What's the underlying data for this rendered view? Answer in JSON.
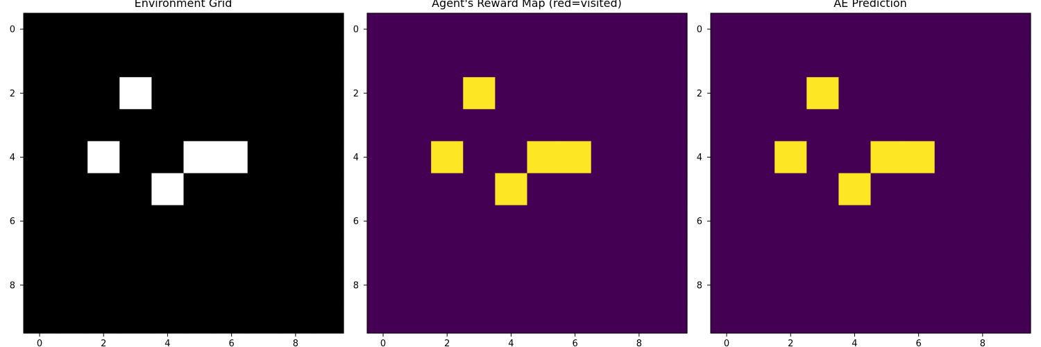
{
  "chart_data": [
    {
      "type": "heatmap",
      "title": "Environment Grid",
      "colormap": "gray",
      "colors": {
        "low": "#000000",
        "high": "#ffffff"
      },
      "xticks": [
        0,
        2,
        4,
        6,
        8
      ],
      "yticks": [
        0,
        2,
        4,
        6,
        8
      ],
      "xlim": [
        -0.5,
        9.5
      ],
      "ylim": [
        9.5,
        -0.5
      ],
      "grid": false,
      "values": [
        [
          0,
          0,
          0,
          0,
          0,
          0,
          0,
          0,
          0,
          0
        ],
        [
          0,
          0,
          0,
          0,
          0,
          0,
          0,
          0,
          0,
          0
        ],
        [
          0,
          0,
          0,
          1,
          0,
          0,
          0,
          0,
          0,
          0
        ],
        [
          0,
          0,
          0,
          0,
          0,
          0,
          0,
          0,
          0,
          0
        ],
        [
          0,
          0,
          1,
          0,
          0,
          1,
          1,
          0,
          0,
          0
        ],
        [
          0,
          0,
          0,
          0,
          1,
          0,
          0,
          0,
          0,
          0
        ],
        [
          0,
          0,
          0,
          0,
          0,
          0,
          0,
          0,
          0,
          0
        ],
        [
          0,
          0,
          0,
          0,
          0,
          0,
          0,
          0,
          0,
          0
        ],
        [
          0,
          0,
          0,
          0,
          0,
          0,
          0,
          0,
          0,
          0
        ],
        [
          0,
          0,
          0,
          0,
          0,
          0,
          0,
          0,
          0,
          0
        ]
      ]
    },
    {
      "type": "heatmap",
      "title": "Agent's Reward Map (red=visited)",
      "colormap": "viridis",
      "colors": {
        "low": "#440154",
        "high": "#fde725"
      },
      "xticks": [
        0,
        2,
        4,
        6,
        8
      ],
      "yticks": [
        0,
        2,
        4,
        6,
        8
      ],
      "xlim": [
        -0.5,
        9.5
      ],
      "ylim": [
        9.5,
        -0.5
      ],
      "grid": false,
      "values": [
        [
          0,
          0,
          0,
          0,
          0,
          0,
          0,
          0,
          0,
          0
        ],
        [
          0,
          0,
          0,
          0,
          0,
          0,
          0,
          0,
          0,
          0
        ],
        [
          0,
          0,
          0,
          1,
          0,
          0,
          0,
          0,
          0,
          0
        ],
        [
          0,
          0,
          0,
          0,
          0,
          0,
          0,
          0,
          0,
          0
        ],
        [
          0,
          0,
          1,
          0,
          0,
          1,
          1,
          0,
          0,
          0
        ],
        [
          0,
          0,
          0,
          0,
          1,
          0,
          0,
          0,
          0,
          0
        ],
        [
          0,
          0,
          0,
          0,
          0,
          0,
          0,
          0,
          0,
          0
        ],
        [
          0,
          0,
          0,
          0,
          0,
          0,
          0,
          0,
          0,
          0
        ],
        [
          0,
          0,
          0,
          0,
          0,
          0,
          0,
          0,
          0,
          0
        ],
        [
          0,
          0,
          0,
          0,
          0,
          0,
          0,
          0,
          0,
          0
        ]
      ]
    },
    {
      "type": "heatmap",
      "title": "AE Prediction",
      "colormap": "viridis",
      "colors": {
        "low": "#440154",
        "high": "#fde725"
      },
      "xticks": [
        0,
        2,
        4,
        6,
        8
      ],
      "yticks": [
        0,
        2,
        4,
        6,
        8
      ],
      "xlim": [
        -0.5,
        9.5
      ],
      "ylim": [
        9.5,
        -0.5
      ],
      "grid": false,
      "values": [
        [
          0,
          0,
          0,
          0,
          0,
          0,
          0,
          0,
          0,
          0
        ],
        [
          0,
          0,
          0,
          0,
          0,
          0,
          0,
          0,
          0,
          0
        ],
        [
          0,
          0,
          0,
          1,
          0,
          0,
          0,
          0,
          0,
          0
        ],
        [
          0,
          0,
          0,
          0,
          0,
          0,
          0,
          0,
          0,
          0
        ],
        [
          0,
          0,
          1,
          0,
          0,
          1,
          1,
          0,
          0,
          0
        ],
        [
          0,
          0,
          0,
          0,
          1,
          0,
          0,
          0,
          0,
          0
        ],
        [
          0,
          0,
          0,
          0,
          0,
          0,
          0,
          0,
          0,
          0
        ],
        [
          0,
          0,
          0,
          0,
          0,
          0,
          0,
          0,
          0,
          0
        ],
        [
          0,
          0,
          0,
          0,
          0,
          0,
          0,
          0,
          0,
          0
        ],
        [
          0,
          0,
          0,
          0,
          0,
          0,
          0,
          0,
          0,
          0
        ]
      ]
    }
  ]
}
